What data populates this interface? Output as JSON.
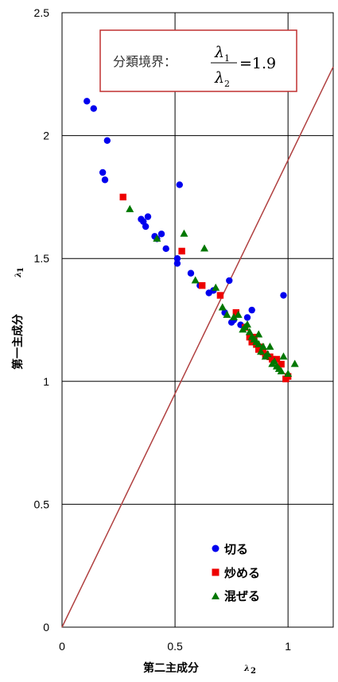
{
  "chart_data": {
    "type": "scatter",
    "title": "",
    "xlabel": "第二主成分",
    "xlabel_symbol": "λ",
    "xlabel_subscript": "2",
    "ylabel": "第一主成分",
    "ylabel_symbol": "λ",
    "ylabel_subscript": "1",
    "xlim": [
      0,
      1.2
    ],
    "ylim": [
      0,
      2.5
    ],
    "xticks": [
      0,
      0.5,
      1
    ],
    "xtick_labels": [
      "0",
      "0.5",
      "1"
    ],
    "yticks": [
      0,
      0.5,
      1,
      1.5,
      2,
      2.5
    ],
    "ytick_labels": [
      "0",
      "0.5",
      "1",
      "1.5",
      "2",
      "2.5"
    ],
    "grid": true,
    "legend_position": "bottom-right",
    "series": [
      {
        "name": "切る",
        "marker": "circle",
        "color": "#0000ee",
        "points": [
          [
            0.11,
            2.14
          ],
          [
            0.14,
            2.11
          ],
          [
            0.2,
            1.98
          ],
          [
            0.18,
            1.85
          ],
          [
            0.19,
            1.82
          ],
          [
            0.52,
            1.8
          ],
          [
            0.35,
            1.66
          ],
          [
            0.38,
            1.67
          ],
          [
            0.36,
            1.65
          ],
          [
            0.37,
            1.63
          ],
          [
            0.41,
            1.59
          ],
          [
            0.44,
            1.6
          ],
          [
            0.42,
            1.58
          ],
          [
            0.46,
            1.54
          ],
          [
            0.51,
            1.5
          ],
          [
            0.51,
            1.48
          ],
          [
            0.57,
            1.44
          ],
          [
            0.61,
            1.39
          ],
          [
            0.65,
            1.36
          ],
          [
            0.67,
            1.37
          ],
          [
            0.74,
            1.41
          ],
          [
            0.72,
            1.28
          ],
          [
            0.76,
            1.25
          ],
          [
            0.75,
            1.24
          ],
          [
            0.82,
            1.26
          ],
          [
            0.84,
            1.29
          ],
          [
            0.98,
            1.35
          ],
          [
            0.79,
            1.23
          ]
        ]
      },
      {
        "name": "炒める",
        "marker": "square",
        "color": "#ee0000",
        "points": [
          [
            0.27,
            1.75
          ],
          [
            0.53,
            1.53
          ],
          [
            0.62,
            1.39
          ],
          [
            0.7,
            1.35
          ],
          [
            0.77,
            1.28
          ],
          [
            0.81,
            1.22
          ],
          [
            0.83,
            1.18
          ],
          [
            0.84,
            1.16
          ],
          [
            0.86,
            1.15
          ],
          [
            0.87,
            1.13
          ],
          [
            0.89,
            1.12
          ],
          [
            0.9,
            1.11
          ],
          [
            0.92,
            1.1
          ],
          [
            0.93,
            1.09
          ],
          [
            0.95,
            1.09
          ],
          [
            0.97,
            1.07
          ],
          [
            0.99,
            1.01
          ],
          [
            1.0,
            1.02
          ],
          [
            0.85,
            1.18
          ],
          [
            0.88,
            1.14
          ]
        ]
      },
      {
        "name": "混ぜる",
        "marker": "triangle",
        "color": "#007700",
        "points": [
          [
            0.3,
            1.7
          ],
          [
            0.42,
            1.58
          ],
          [
            0.54,
            1.6
          ],
          [
            0.63,
            1.54
          ],
          [
            0.59,
            1.41
          ],
          [
            0.68,
            1.38
          ],
          [
            0.71,
            1.3
          ],
          [
            0.73,
            1.27
          ],
          [
            0.76,
            1.26
          ],
          [
            0.78,
            1.27
          ],
          [
            0.8,
            1.21
          ],
          [
            0.81,
            1.22
          ],
          [
            0.82,
            1.23
          ],
          [
            0.83,
            1.2
          ],
          [
            0.84,
            1.18
          ],
          [
            0.85,
            1.17
          ],
          [
            0.86,
            1.16
          ],
          [
            0.87,
            1.15
          ],
          [
            0.88,
            1.12
          ],
          [
            0.89,
            1.14
          ],
          [
            0.9,
            1.1
          ],
          [
            0.91,
            1.11
          ],
          [
            0.92,
            1.14
          ],
          [
            0.93,
            1.07
          ],
          [
            0.94,
            1.08
          ],
          [
            0.95,
            1.06
          ],
          [
            0.96,
            1.05
          ],
          [
            0.97,
            1.04
          ],
          [
            0.98,
            1.1
          ],
          [
            1.0,
            1.03
          ],
          [
            1.03,
            1.07
          ],
          [
            0.87,
            1.19
          ]
        ]
      }
    ],
    "boundary_line": {
      "slope": 1.9,
      "color": "#b04040"
    },
    "annotation": {
      "prefix": "分類境界：",
      "numerator_symbol": "λ",
      "numerator_subscript": "1",
      "denominator_symbol": "λ",
      "denominator_subscript": "2",
      "value": "=1.9"
    }
  }
}
